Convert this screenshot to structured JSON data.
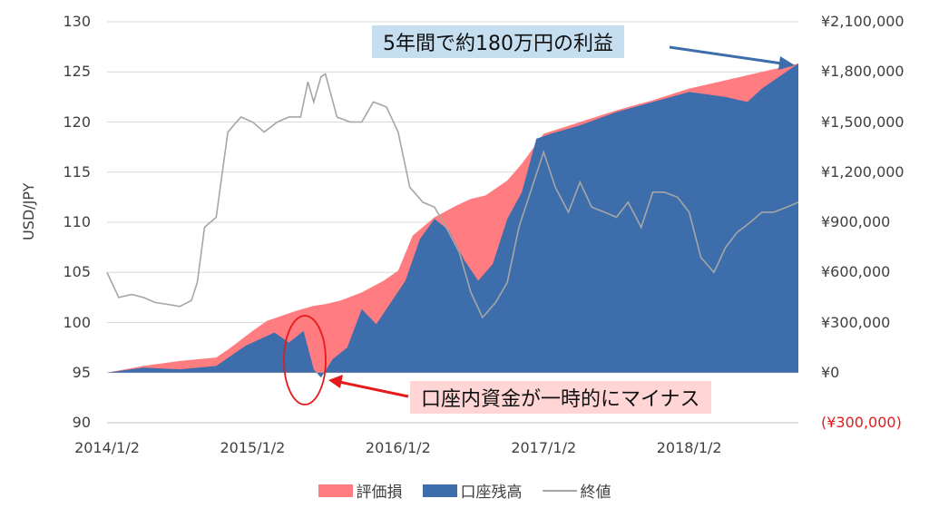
{
  "chart_data": {
    "type": "area",
    "y_left": {
      "label": "USD/JPY",
      "range": [
        90,
        130
      ],
      "ticks": [
        "130",
        "125",
        "120",
        "115",
        "110",
        "105",
        "100",
        "95",
        "90"
      ]
    },
    "y_right": {
      "range": [
        -300000,
        2100000
      ],
      "ticks": [
        "¥2,100,000",
        "¥1,800,000",
        "¥1,500,000",
        "¥1,200,000",
        "¥900,000",
        "¥600,000",
        "¥300,000",
        "¥0",
        "(¥300,000)"
      ],
      "negative_tick_color": "#e41a1a"
    },
    "x_ticks": [
      "2014/1/2",
      "2015/1/2",
      "2016/1/2",
      "2017/1/2",
      "2018/1/2"
    ],
    "series": [
      {
        "name": "評価損",
        "kind": "area",
        "color": "#ff7c80",
        "axis": "right",
        "x": [
          2014.0,
          2014.25,
          2014.5,
          2014.75,
          2014.85,
          2015.0,
          2015.1,
          2015.2,
          2015.3,
          2015.42,
          2015.5,
          2015.6,
          2015.75,
          2015.9,
          2016.0,
          2016.1,
          2016.25,
          2016.4,
          2016.5,
          2016.6,
          2016.75,
          2016.85,
          2017.0,
          2017.25,
          2017.5,
          2017.75,
          2018.0,
          2018.25,
          2018.5,
          2018.75
        ],
        "values": [
          0,
          40000,
          70000,
          90000,
          150000,
          250000,
          310000,
          340000,
          370000,
          400000,
          410000,
          430000,
          480000,
          550000,
          610000,
          820000,
          930000,
          1000000,
          1040000,
          1060000,
          1150000,
          1250000,
          1430000,
          1500000,
          1570000,
          1630000,
          1700000,
          1750000,
          1800000,
          1850000
        ]
      },
      {
        "name": "口座残高",
        "kind": "area",
        "color": "#3d6eab",
        "axis": "right",
        "x": [
          2014.0,
          2014.25,
          2014.5,
          2014.75,
          2014.85,
          2014.95,
          2015.05,
          2015.15,
          2015.25,
          2015.35,
          2015.42,
          2015.47,
          2015.55,
          2015.65,
          2015.75,
          2015.85,
          2015.95,
          2016.05,
          2016.15,
          2016.25,
          2016.35,
          2016.45,
          2016.55,
          2016.65,
          2016.75,
          2016.85,
          2016.95,
          2017.05,
          2017.25,
          2017.5,
          2017.75,
          2018.0,
          2018.25,
          2018.4,
          2018.5,
          2018.75
        ],
        "values": [
          0,
          30000,
          20000,
          40000,
          100000,
          160000,
          200000,
          240000,
          180000,
          250000,
          20000,
          -30000,
          80000,
          150000,
          380000,
          290000,
          420000,
          550000,
          800000,
          920000,
          850000,
          680000,
          550000,
          650000,
          920000,
          1080000,
          1400000,
          1430000,
          1480000,
          1560000,
          1620000,
          1680000,
          1650000,
          1620000,
          1700000,
          1850000
        ]
      },
      {
        "name": "終値",
        "kind": "line",
        "color": "#a6a6a6",
        "axis": "left",
        "x": [
          2014.0,
          2014.08,
          2014.17,
          2014.25,
          2014.33,
          2014.42,
          2014.5,
          2014.58,
          2014.62,
          2014.67,
          2014.75,
          2014.83,
          2014.92,
          2015.0,
          2015.08,
          2015.17,
          2015.25,
          2015.33,
          2015.38,
          2015.42,
          2015.47,
          2015.5,
          2015.58,
          2015.67,
          2015.75,
          2015.83,
          2015.92,
          2016.0,
          2016.08,
          2016.17,
          2016.25,
          2016.33,
          2016.42,
          2016.5,
          2016.58,
          2016.67,
          2016.75,
          2016.83,
          2016.92,
          2017.0,
          2017.08,
          2017.17,
          2017.25,
          2017.33,
          2017.42,
          2017.5,
          2017.58,
          2017.67,
          2017.75,
          2017.83,
          2017.92,
          2018.0,
          2018.08,
          2018.17,
          2018.25,
          2018.33,
          2018.42,
          2018.5,
          2018.58,
          2018.67,
          2018.75
        ],
        "values": [
          105.0,
          102.5,
          102.8,
          102.5,
          102.0,
          101.8,
          101.6,
          102.2,
          104.0,
          109.5,
          110.5,
          119.0,
          120.5,
          120.0,
          119.0,
          120.0,
          120.5,
          120.5,
          124.0,
          122.0,
          124.5,
          124.8,
          120.5,
          120.0,
          120.0,
          122.0,
          121.5,
          119.0,
          113.5,
          112.0,
          111.5,
          109.5,
          107.0,
          103.0,
          100.5,
          102.0,
          104.0,
          109.5,
          113.5,
          117.0,
          113.5,
          111.0,
          114.0,
          111.5,
          111.0,
          110.5,
          112.0,
          109.5,
          113.0,
          113.0,
          112.5,
          111.0,
          106.5,
          105.0,
          107.5,
          109.0,
          110.0,
          111.0,
          111.0,
          111.5,
          112.0
        ]
      }
    ],
    "annotations": [
      {
        "text": "5年間で約180万円の利益",
        "background": "#c5dff0",
        "arrow_color": "#3d6eab"
      },
      {
        "text": "口座内資金が一時的にマイナス",
        "background": "#ffd5d5",
        "arrow_color": "#e61a1a"
      }
    ],
    "legend": {
      "position": "bottom"
    }
  }
}
